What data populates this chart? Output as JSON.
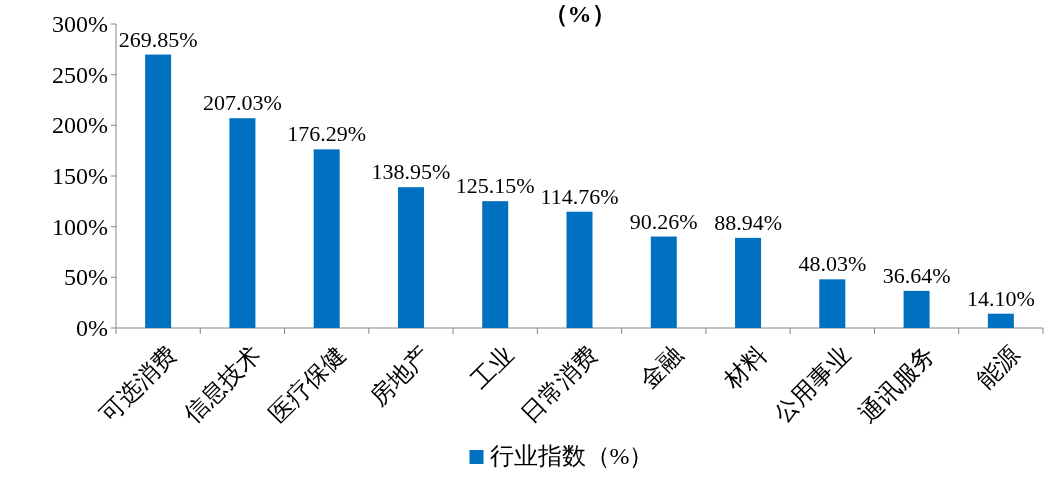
{
  "chart_data": {
    "type": "bar",
    "title": "（%）",
    "categories": [
      "可选消费",
      "信息技术",
      "医疗保健",
      "房地产",
      "工业",
      "日常消费",
      "金融",
      "材料",
      "公用事业",
      "通讯服务",
      "能源"
    ],
    "series": [
      {
        "name": "行业指数（%）",
        "color": "#0070c0",
        "values": [
          269.85,
          207.03,
          176.29,
          138.95,
          125.15,
          114.76,
          90.26,
          88.94,
          48.03,
          36.64,
          14.1
        ],
        "value_labels": [
          "269.85%",
          "207.03%",
          "176.29%",
          "138.95%",
          "125.15%",
          "114.76%",
          "90.26%",
          "88.94%",
          "48.03%",
          "36.64%",
          "14.10%"
        ]
      }
    ],
    "ylim": [
      0,
      300
    ],
    "yticks": [
      {
        "value": 0,
        "label": "0%"
      },
      {
        "value": 50,
        "label": "50%"
      },
      {
        "value": 100,
        "label": "100%"
      },
      {
        "value": 150,
        "label": "150%"
      },
      {
        "value": 200,
        "label": "200%"
      },
      {
        "value": 250,
        "label": "250%"
      },
      {
        "value": 300,
        "label": "300%"
      }
    ],
    "grid": false,
    "legend": "bottom"
  }
}
